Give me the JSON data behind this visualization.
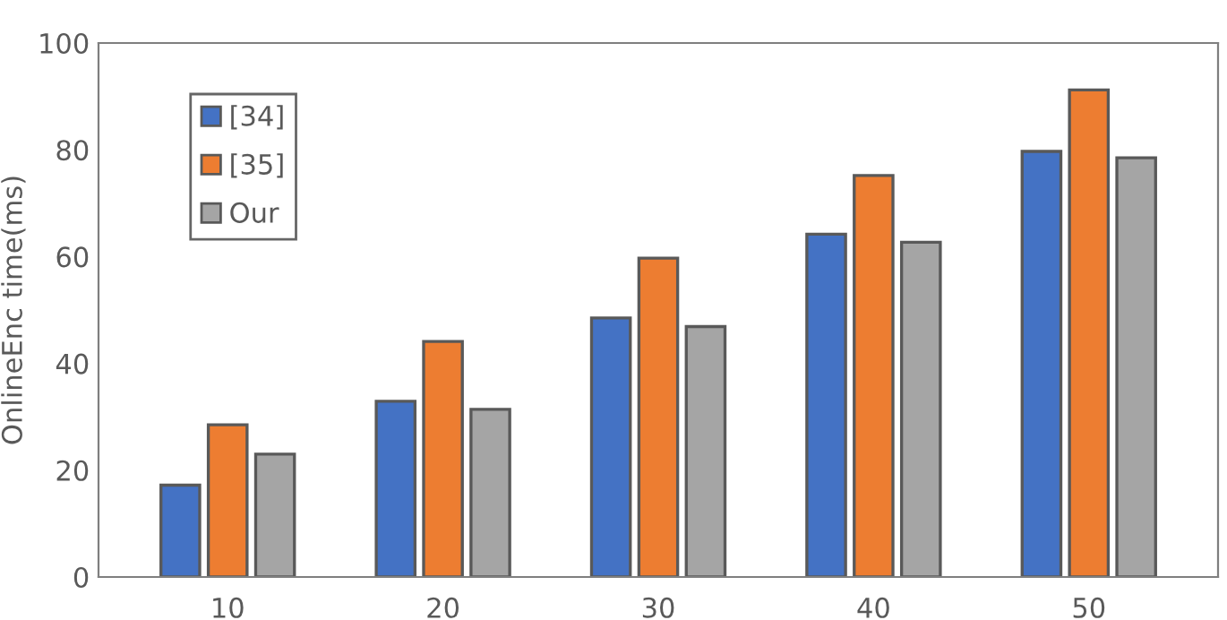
{
  "chart_data": {
    "type": "bar",
    "ylabel": "OnlineEnc time(ms)",
    "categories": [
      "10",
      "20",
      "30",
      "40",
      "50"
    ],
    "series": [
      {
        "name": "[34]",
        "color": "#4472c4",
        "values": [
          17.2,
          32.9,
          48.5,
          64.2,
          79.7
        ]
      },
      {
        "name": "[35]",
        "color": "#ed7d31",
        "values": [
          28.5,
          44.1,
          59.7,
          75.2,
          91.2
        ]
      },
      {
        "name": "Our",
        "color": "#a5a5a5",
        "values": [
          23.0,
          31.4,
          46.9,
          62.7,
          78.5
        ]
      }
    ],
    "ylim": [
      0,
      100
    ],
    "yticks": [
      0,
      20,
      40,
      60,
      80,
      100
    ],
    "grid": false,
    "legend": "top left"
  }
}
